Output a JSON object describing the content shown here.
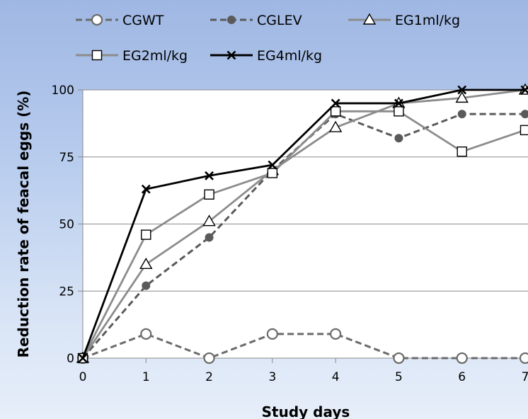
{
  "chart_data": {
    "type": "line",
    "x": [
      0,
      1,
      2,
      3,
      4,
      5,
      6,
      7
    ],
    "xticks": [
      "0",
      "1",
      "2",
      "3",
      "4",
      "5",
      "6",
      "7"
    ],
    "yticks": [
      "0",
      "25",
      "50",
      "75",
      "100"
    ],
    "xlabel": "Study days",
    "ylabel": "Reduction rate of feacal eggs (%)",
    "xlim": [
      0,
      7
    ],
    "ylim": [
      0,
      100
    ],
    "grid": "horizontal",
    "legend_position": "top",
    "series": [
      {
        "name": "CGWT",
        "values": [
          0,
          9,
          0,
          9,
          9,
          0,
          0,
          0
        ],
        "color": "#6b6b6b",
        "dash": "dashed",
        "marker": "circle-open"
      },
      {
        "name": "CGLEV",
        "values": [
          0,
          27,
          45,
          70,
          91,
          82,
          91,
          91
        ],
        "color": "#5a5a5a",
        "dash": "dashed",
        "marker": "circle-filled"
      },
      {
        "name": "EG1ml/kg",
        "values": [
          0,
          35,
          51,
          70,
          86,
          95,
          97,
          100
        ],
        "color": "#8c8c8c",
        "dash": "solid",
        "marker": "triangle-open"
      },
      {
        "name": "EG2ml/kg",
        "values": [
          0,
          46,
          61,
          69,
          92,
          92,
          77,
          85
        ],
        "color": "#8c8c8c",
        "dash": "solid",
        "marker": "square-open"
      },
      {
        "name": "EG4ml/kg",
        "values": [
          0,
          63,
          68,
          72,
          95,
          95,
          100,
          100
        ],
        "color": "#000000",
        "dash": "solid",
        "marker": "x"
      }
    ]
  }
}
